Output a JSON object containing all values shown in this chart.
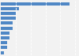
{
  "values": [
    23,
    6,
    5,
    5,
    4,
    4,
    3,
    3,
    2,
    2,
    1
  ],
  "bar_color": "#4f87c5",
  "background_color": "#f2f2f2",
  "grid_color": "#ffffff",
  "figsize": [
    1.0,
    0.71
  ],
  "dpi": 100
}
